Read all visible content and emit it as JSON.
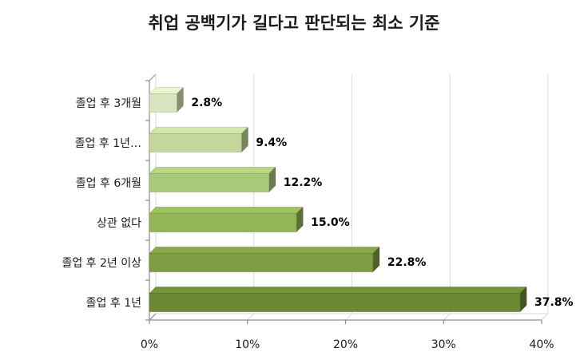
{
  "chart_data": {
    "type": "bar",
    "orientation": "horizontal",
    "title": "취업 공백기가 길다고 판단되는 최소 기준",
    "xlabel": "",
    "ylabel": "",
    "categories": [
      "졸업 후 3개월",
      "졸업 후 1년…",
      "졸업 후 6개월",
      "상관 없다",
      "졸업 후 2년 이상",
      "졸업 후 1년"
    ],
    "values": [
      2.8,
      9.4,
      12.2,
      15.0,
      22.8,
      37.8
    ],
    "data_labels": [
      "2.8%",
      "9.4%",
      "12.2%",
      "15.0%",
      "22.8%",
      "37.8%"
    ],
    "xlim": [
      0,
      40
    ],
    "x_ticks": [
      "0%",
      "10%",
      "20%",
      "30%",
      "40%"
    ],
    "grid": true,
    "style": "3d",
    "colors": [
      "#d7e4bd",
      "#c3d69b",
      "#a9c97a",
      "#92b556",
      "#7e9e44",
      "#6b8a36"
    ]
  }
}
